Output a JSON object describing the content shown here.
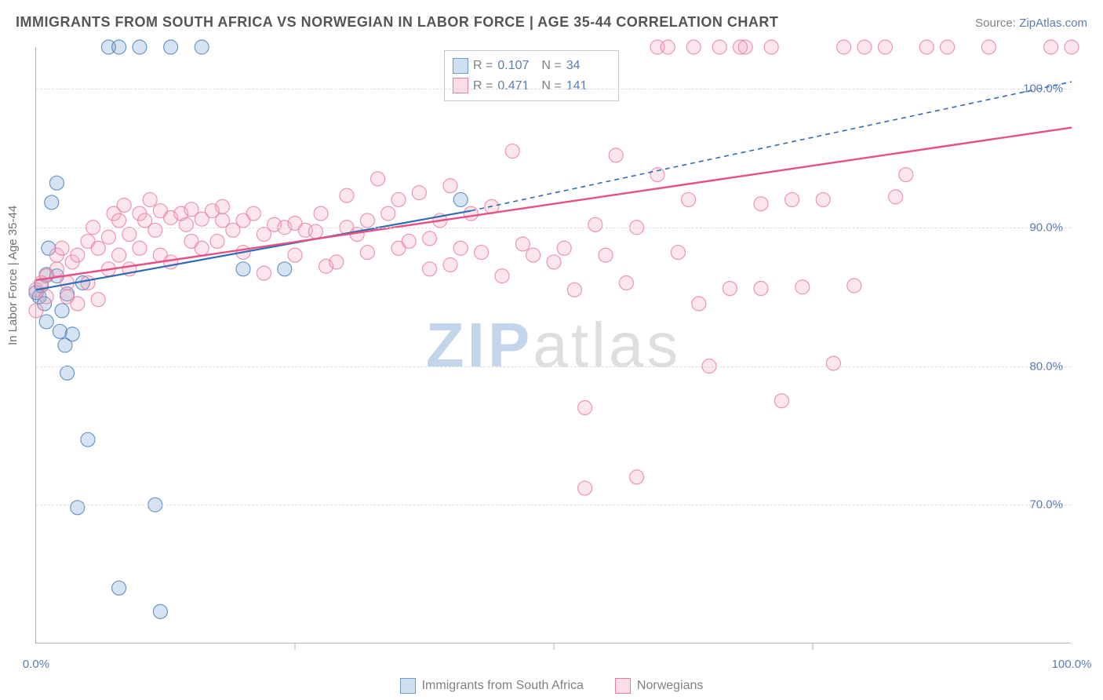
{
  "title": "IMMIGRANTS FROM SOUTH AFRICA VS NORWEGIAN IN LABOR FORCE | AGE 35-44 CORRELATION CHART",
  "source": {
    "label": "Source:",
    "link_text": "ZipAtlas.com"
  },
  "y_axis_label": "In Labor Force | Age 35-44",
  "watermark": {
    "a": "ZIP",
    "b": "atlas"
  },
  "chart": {
    "type": "scatter",
    "xlim": [
      0,
      100
    ],
    "ylim": [
      60,
      103
    ],
    "x_ticks": [
      0,
      100
    ],
    "x_tick_labels": [
      "0.0%",
      "100.0%"
    ],
    "x_minor_ticks": [
      25,
      50,
      75
    ],
    "y_ticks": [
      70,
      80,
      90,
      100
    ],
    "y_tick_labels": [
      "70.0%",
      "80.0%",
      "90.0%",
      "100.0%"
    ],
    "background_color": "#ffffff",
    "grid_color": "#dcdcdc",
    "marker_radius": 9,
    "marker_fill_opacity": 0.28,
    "marker_stroke_opacity": 0.8,
    "marker_stroke_width": 1.2,
    "series": [
      {
        "name": "Immigrants from South Africa",
        "color": "#6b9bd1",
        "stroke": "#4a7fb8",
        "R": "0.107",
        "N": "34",
        "trend": {
          "x1": 0,
          "y1": 85.5,
          "x2": 42,
          "y2": 91.2,
          "dash": "none",
          "width": 2.2,
          "color": "#2f6db3"
        },
        "trend_ext": {
          "x1": 42,
          "y1": 91.2,
          "x2": 100,
          "y2": 100.5,
          "dash": "6,5",
          "width": 1.6,
          "color": "#2f6db3"
        },
        "points": [
          [
            0,
            85.3
          ],
          [
            0.3,
            85
          ],
          [
            0.5,
            85.8
          ],
          [
            0.8,
            84.5
          ],
          [
            1,
            86.6
          ],
          [
            1,
            83.2
          ],
          [
            1.2,
            88.5
          ],
          [
            1.5,
            91.8
          ],
          [
            2,
            93.2
          ],
          [
            2,
            86.5
          ],
          [
            2.3,
            82.5
          ],
          [
            2.5,
            84
          ],
          [
            2.8,
            81.5
          ],
          [
            3,
            79.5
          ],
          [
            3,
            85.2
          ],
          [
            3.5,
            82.3
          ],
          [
            4,
            69.8
          ],
          [
            4.5,
            86
          ],
          [
            5,
            74.7
          ],
          [
            7,
            103
          ],
          [
            8,
            103
          ],
          [
            10,
            103
          ],
          [
            13,
            103
          ],
          [
            16,
            103
          ],
          [
            8,
            64
          ],
          [
            12,
            62.3
          ],
          [
            11.5,
            70
          ],
          [
            20,
            87
          ],
          [
            24,
            87
          ],
          [
            41,
            92
          ]
        ]
      },
      {
        "name": "Norwegians",
        "color": "#f4a6bd",
        "stroke": "#ea7ca0",
        "R": "0.471",
        "N": "141",
        "trend": {
          "x1": 0,
          "y1": 86.2,
          "x2": 100,
          "y2": 97.2,
          "dash": "none",
          "width": 2.4,
          "color": "#e84f86"
        },
        "points": [
          [
            0,
            84
          ],
          [
            0,
            85.5
          ],
          [
            0.5,
            86
          ],
          [
            1,
            86.5
          ],
          [
            1,
            85
          ],
          [
            2,
            87
          ],
          [
            2,
            88
          ],
          [
            2.5,
            88.5
          ],
          [
            3,
            85
          ],
          [
            3,
            86
          ],
          [
            3.5,
            87.5
          ],
          [
            4,
            88
          ],
          [
            4,
            84.5
          ],
          [
            5,
            89
          ],
          [
            5,
            86
          ],
          [
            5.5,
            90
          ],
          [
            6,
            88.5
          ],
          [
            6,
            84.8
          ],
          [
            7,
            89.3
          ],
          [
            7,
            87
          ],
          [
            7.5,
            91
          ],
          [
            8,
            90.5
          ],
          [
            8,
            88
          ],
          [
            8.5,
            91.6
          ],
          [
            9,
            89.5
          ],
          [
            9,
            87
          ],
          [
            10,
            91
          ],
          [
            10,
            88.5
          ],
          [
            10.5,
            90.5
          ],
          [
            11,
            92
          ],
          [
            11.5,
            89.8
          ],
          [
            12,
            91.2
          ],
          [
            12,
            88
          ],
          [
            13,
            90.7
          ],
          [
            13,
            87.5
          ],
          [
            14,
            91
          ],
          [
            14.5,
            90.2
          ],
          [
            15,
            91.3
          ],
          [
            15,
            89
          ],
          [
            16,
            90.6
          ],
          [
            16,
            88.5
          ],
          [
            17,
            91.2
          ],
          [
            17.5,
            89
          ],
          [
            18,
            90.5
          ],
          [
            18,
            91.5
          ],
          [
            19,
            89.8
          ],
          [
            20,
            90.5
          ],
          [
            20,
            88.2
          ],
          [
            21,
            91
          ],
          [
            22,
            89.5
          ],
          [
            22,
            86.7
          ],
          [
            23,
            90.2
          ],
          [
            24,
            90
          ],
          [
            25,
            90.3
          ],
          [
            25,
            88
          ],
          [
            26,
            89.8
          ],
          [
            27,
            89.7
          ],
          [
            27.5,
            91
          ],
          [
            28,
            87.2
          ],
          [
            29,
            87.5
          ],
          [
            30,
            90
          ],
          [
            30,
            92.3
          ],
          [
            31,
            89.5
          ],
          [
            32,
            88.2
          ],
          [
            32,
            90.5
          ],
          [
            33,
            93.5
          ],
          [
            34,
            91
          ],
          [
            35,
            88.5
          ],
          [
            35,
            92
          ],
          [
            36,
            89
          ],
          [
            37,
            92.5
          ],
          [
            38,
            89.2
          ],
          [
            38,
            87
          ],
          [
            39,
            90.5
          ],
          [
            40,
            93
          ],
          [
            40,
            87.3
          ],
          [
            41,
            88.5
          ],
          [
            42,
            91
          ],
          [
            43,
            88.2
          ],
          [
            44,
            91.5
          ],
          [
            45,
            86.5
          ],
          [
            46,
            95.5
          ],
          [
            47,
            88.8
          ],
          [
            48,
            88
          ],
          [
            50,
            87.5
          ],
          [
            51,
            88.5
          ],
          [
            52,
            85.5
          ],
          [
            53,
            77
          ],
          [
            54,
            90.2
          ],
          [
            55,
            88
          ],
          [
            56,
            95.2
          ],
          [
            57,
            86
          ],
          [
            58,
            90
          ],
          [
            60,
            103
          ],
          [
            60,
            93.8
          ],
          [
            61,
            103
          ],
          [
            62,
            88.2
          ],
          [
            63,
            92
          ],
          [
            63.5,
            103
          ],
          [
            64,
            84.5
          ],
          [
            65,
            80
          ],
          [
            66,
            103
          ],
          [
            67,
            85.6
          ],
          [
            68,
            103
          ],
          [
            68.5,
            103
          ],
          [
            70,
            91.7
          ],
          [
            70,
            85.6
          ],
          [
            71,
            103
          ],
          [
            72,
            77.5
          ],
          [
            73,
            92
          ],
          [
            74,
            85.7
          ],
          [
            76,
            92
          ],
          [
            77,
            80.2
          ],
          [
            78,
            103
          ],
          [
            79,
            85.8
          ],
          [
            80,
            103
          ],
          [
            82,
            103
          ],
          [
            83,
            92.2
          ],
          [
            84,
            93.8
          ],
          [
            86,
            103
          ],
          [
            88,
            103
          ],
          [
            92,
            103
          ],
          [
            98,
            103
          ],
          [
            100,
            103
          ],
          [
            58,
            72
          ],
          [
            53,
            71.2
          ]
        ]
      }
    ]
  },
  "top_legend": {
    "rows": [
      {
        "swatch_fill": "#cfe0f2",
        "swatch_border": "#6b9bd1",
        "r_label": "R =",
        "r_val": "0.107",
        "n_label": "N =",
        "n_val": "34"
      },
      {
        "swatch_fill": "#fadde6",
        "swatch_border": "#ea7ca0",
        "r_label": "R =",
        "r_val": "0.471",
        "n_label": "N =",
        "n_val": "141"
      }
    ]
  },
  "bottom_legend": {
    "items": [
      {
        "swatch_fill": "#cfe0f2",
        "swatch_border": "#6b9bd1",
        "label": "Immigrants from South Africa"
      },
      {
        "swatch_fill": "#fadde6",
        "swatch_border": "#ea7ca0",
        "label": "Norwegians"
      }
    ]
  }
}
